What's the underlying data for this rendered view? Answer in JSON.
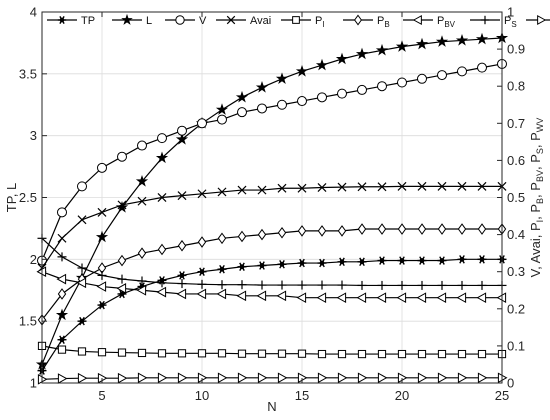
{
  "chart_data": {
    "type": "line",
    "xlabel": "N",
    "ylabel_left": "TP, L",
    "ylabel_right": [
      "V, Avai, P",
      "I",
      ", P",
      "B",
      ", P",
      "BV",
      ", P",
      "S",
      ", P",
      "WV"
    ],
    "xlim": [
      2,
      25
    ],
    "ylim_left": [
      1,
      4
    ],
    "ylim_right": [
      0,
      1
    ],
    "xticks": [
      5,
      10,
      15,
      20,
      25
    ],
    "yticks_left": [
      1,
      1.5,
      2,
      2.5,
      3,
      3.5,
      4
    ],
    "yticks_right": [
      0,
      0.1,
      0.2,
      0.3,
      0.4,
      0.5,
      0.6,
      0.7,
      0.8,
      0.9,
      1
    ],
    "grid": true,
    "legend_position": "top",
    "x": [
      2,
      3,
      4,
      5,
      6,
      7,
      8,
      9,
      10,
      11,
      12,
      13,
      14,
      15,
      16,
      17,
      18,
      19,
      20,
      21,
      22,
      23,
      24,
      25
    ],
    "series": [
      {
        "name": "TP",
        "sub": "",
        "axis": "left",
        "marker": "star",
        "values": [
          1.1,
          1.35,
          1.5,
          1.63,
          1.72,
          1.78,
          1.83,
          1.87,
          1.9,
          1.92,
          1.94,
          1.95,
          1.96,
          1.97,
          1.97,
          1.98,
          1.98,
          1.99,
          1.99,
          1.99,
          1.99,
          2.0,
          2.0,
          2.0
        ]
      },
      {
        "name": "L",
        "sub": "",
        "axis": "left",
        "marker": "pentagram",
        "values": [
          1.15,
          1.55,
          1.85,
          2.18,
          2.42,
          2.63,
          2.82,
          2.97,
          3.1,
          3.21,
          3.31,
          3.39,
          3.46,
          3.52,
          3.57,
          3.62,
          3.66,
          3.69,
          3.72,
          3.74,
          3.76,
          3.77,
          3.78,
          3.79
        ]
      },
      {
        "name": "V",
        "sub": "",
        "axis": "right",
        "marker": "circle",
        "values": [
          0.33,
          0.46,
          0.53,
          0.58,
          0.61,
          0.64,
          0.66,
          0.68,
          0.7,
          0.71,
          0.73,
          0.74,
          0.75,
          0.76,
          0.77,
          0.78,
          0.79,
          0.8,
          0.81,
          0.82,
          0.83,
          0.84,
          0.85,
          0.86
        ]
      },
      {
        "name": "Avai",
        "sub": "",
        "axis": "right",
        "marker": "x",
        "values": [
          0.31,
          0.39,
          0.44,
          0.46,
          0.48,
          0.49,
          0.5,
          0.505,
          0.51,
          0.515,
          0.52,
          0.52,
          0.525,
          0.525,
          0.527,
          0.528,
          0.529,
          0.529,
          0.53,
          0.53,
          0.53,
          0.53,
          0.53,
          0.53
        ]
      },
      {
        "name": "P",
        "sub": "I",
        "axis": "right",
        "marker": "square",
        "values": [
          0.1,
          0.09,
          0.085,
          0.083,
          0.082,
          0.081,
          0.08,
          0.08,
          0.08,
          0.08,
          0.079,
          0.079,
          0.079,
          0.079,
          0.078,
          0.078,
          0.078,
          0.078,
          0.078,
          0.078,
          0.078,
          0.078,
          0.078,
          0.078
        ]
      },
      {
        "name": "P",
        "sub": "B",
        "axis": "right",
        "marker": "diamond",
        "values": [
          0.17,
          0.24,
          0.28,
          0.31,
          0.33,
          0.35,
          0.36,
          0.37,
          0.38,
          0.39,
          0.395,
          0.4,
          0.405,
          0.41,
          0.41,
          0.41,
          0.415,
          0.415,
          0.415,
          0.415,
          0.415,
          0.415,
          0.415,
          0.415
        ]
      },
      {
        "name": "P",
        "sub": "BV",
        "axis": "right",
        "marker": "triangle-left",
        "values": [
          0.3,
          0.28,
          0.27,
          0.26,
          0.255,
          0.25,
          0.245,
          0.24,
          0.24,
          0.24,
          0.235,
          0.235,
          0.235,
          0.23,
          0.23,
          0.23,
          0.23,
          0.23,
          0.23,
          0.23,
          0.23,
          0.23,
          0.23,
          0.23
        ]
      },
      {
        "name": "P",
        "sub": "S",
        "axis": "right",
        "marker": "plus",
        "values": [
          0.39,
          0.34,
          0.31,
          0.29,
          0.28,
          0.275,
          0.27,
          0.268,
          0.266,
          0.265,
          0.265,
          0.264,
          0.264,
          0.264,
          0.264,
          0.264,
          0.263,
          0.263,
          0.263,
          0.263,
          0.263,
          0.263,
          0.263,
          0.263
        ]
      },
      {
        "name": "P",
        "sub": "WV",
        "axis": "right",
        "marker": "triangle-right",
        "values": [
          0.01,
          0.012,
          0.013,
          0.013,
          0.013,
          0.014,
          0.014,
          0.014,
          0.014,
          0.014,
          0.014,
          0.014,
          0.014,
          0.014,
          0.014,
          0.014,
          0.014,
          0.014,
          0.014,
          0.014,
          0.014,
          0.014,
          0.014,
          0.014
        ]
      }
    ]
  }
}
